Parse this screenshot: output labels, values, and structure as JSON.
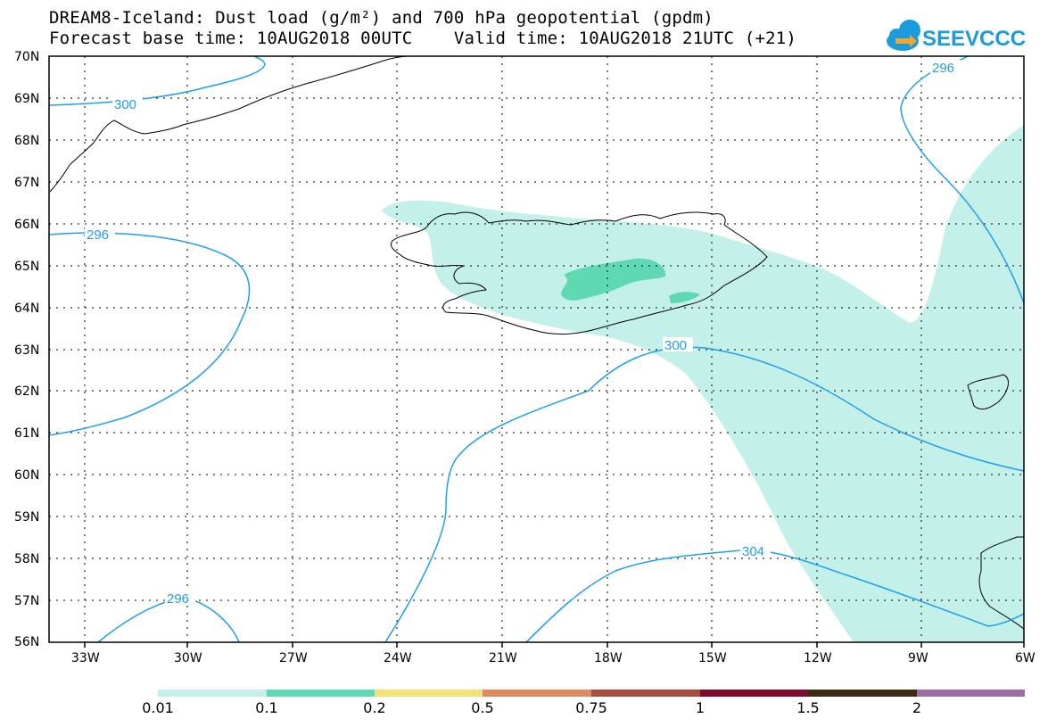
{
  "header": {
    "title_line1": "DREAM8-Iceland: Dust load (g/m²) and 700 hPa geopotential (gpdm)",
    "title_line2": "Forecast base time: 10AUG2018 00UTC    Valid time: 10AUG2018 21UTC (+21)"
  },
  "logo": {
    "text": "SEEVCCC",
    "color": "#1a9cdc",
    "icon": "cloud-arrow-icon"
  },
  "map": {
    "lat_labels": [
      "70N",
      "69N",
      "68N",
      "67N",
      "66N",
      "65N",
      "64N",
      "63N",
      "62N",
      "61N",
      "60N",
      "59N",
      "58N",
      "57N",
      "56N"
    ],
    "lon_labels": [
      "33W",
      "30W",
      "27W",
      "24W",
      "21W",
      "18W",
      "15W",
      "12W",
      "9W",
      "6W"
    ],
    "contour_labels": [
      "300",
      "296",
      "296",
      "300",
      "304",
      "296"
    ],
    "contour_color": "#1f9ef0",
    "dust_light_color": "#c4f0ea",
    "dust_mid_color": "#5ed9b4"
  },
  "legend": {
    "labels": [
      "0.01",
      "0.1",
      "0.2",
      "0.5",
      "0.75",
      "1",
      "1.5",
      "2"
    ],
    "colors": [
      "#c4f0ea",
      "#5ed9b4",
      "#f2e27a",
      "#e28a5f",
      "#a94d3f",
      "#7f0b2d",
      "#3d2a16",
      "#9a6fa6"
    ]
  }
}
